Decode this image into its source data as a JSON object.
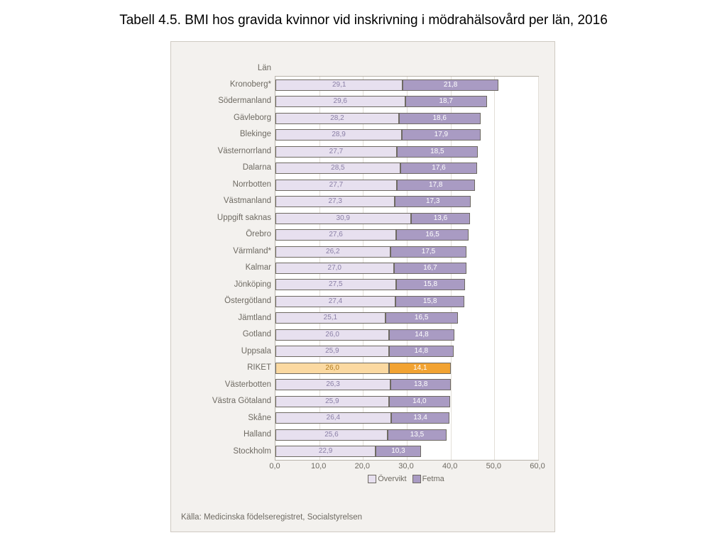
{
  "title": "Tabell 4.5. BMI hos gravida kvinnor vid inskrivning i mödrahälsovård per län, 2016",
  "source": "Källa: Medicinska födelseregistret, Socialstyrelsen",
  "chart": {
    "type": "stacked-horizontal-bar",
    "background_color": "#f3f1ee",
    "plot_background": "#ffffff",
    "border_color": "#b7b2a9",
    "grid_color": "#e3dfd8",
    "text_color": "#6e6a62",
    "value_fontsize": 10,
    "label_fontsize": 11.5,
    "xlim": [
      0,
      60
    ],
    "xtick_step": 10,
    "xtick_labels": [
      "0,0",
      "10,0",
      "20,0",
      "30,0",
      "40,0",
      "50,0",
      "60,0"
    ],
    "category_header": "Län",
    "series": [
      {
        "key": "overvikt",
        "label": "Övervikt",
        "fill": "#e7e0ef",
        "text": "#8a7fa6"
      },
      {
        "key": "fetma",
        "label": "Fetma",
        "fill": "#a99bc3",
        "text": "#ffffff"
      }
    ],
    "highlight_key": "RIKET",
    "highlight_colors": {
      "overvikt": {
        "fill": "#fbd9a1",
        "text": "#b07b1e"
      },
      "fetma": {
        "fill": "#f2a332",
        "text": "#ffffff"
      }
    },
    "rows": [
      {
        "label": "Kronoberg*",
        "overvikt": 29.1,
        "fetma": 21.8
      },
      {
        "label": "Södermanland",
        "overvikt": 29.6,
        "fetma": 18.7
      },
      {
        "label": "Gävleborg",
        "overvikt": 28.2,
        "fetma": 18.6
      },
      {
        "label": "Blekinge",
        "overvikt": 28.9,
        "fetma": 17.9
      },
      {
        "label": "Västernorrland",
        "overvikt": 27.7,
        "fetma": 18.5
      },
      {
        "label": "Dalarna",
        "overvikt": 28.5,
        "fetma": 17.6
      },
      {
        "label": "Norrbotten",
        "overvikt": 27.7,
        "fetma": 17.8
      },
      {
        "label": "Västmanland",
        "overvikt": 27.3,
        "fetma": 17.3
      },
      {
        "label": "Uppgift saknas",
        "overvikt": 30.9,
        "fetma": 13.6
      },
      {
        "label": "Örebro",
        "overvikt": 27.6,
        "fetma": 16.5
      },
      {
        "label": "Värmland*",
        "overvikt": 26.2,
        "fetma": 17.5
      },
      {
        "label": "Kalmar",
        "overvikt": 27.0,
        "fetma": 16.7
      },
      {
        "label": "Jönköping",
        "overvikt": 27.5,
        "fetma": 15.8
      },
      {
        "label": "Östergötland",
        "overvikt": 27.4,
        "fetma": 15.8
      },
      {
        "label": "Jämtland",
        "overvikt": 25.1,
        "fetma": 16.5
      },
      {
        "label": "Gotland",
        "overvikt": 26.0,
        "fetma": 14.8
      },
      {
        "label": "Uppsala",
        "overvikt": 25.9,
        "fetma": 14.8
      },
      {
        "label": "RIKET",
        "overvikt": 26.0,
        "fetma": 14.1
      },
      {
        "label": "Västerbotten",
        "overvikt": 26.3,
        "fetma": 13.8
      },
      {
        "label": "Västra Götaland",
        "overvikt": 25.9,
        "fetma": 14.0
      },
      {
        "label": "Skåne",
        "overvikt": 26.4,
        "fetma": 13.4
      },
      {
        "label": "Halland",
        "overvikt": 25.6,
        "fetma": 13.5
      },
      {
        "label": "Stockholm",
        "overvikt": 22.9,
        "fetma": 10.3
      }
    ]
  }
}
